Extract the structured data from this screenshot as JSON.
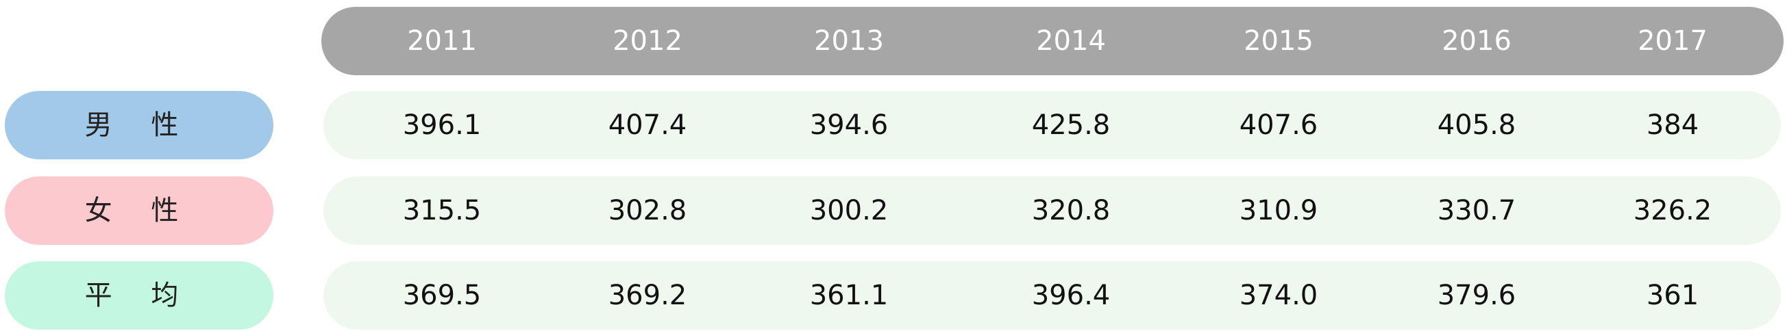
{
  "table": {
    "header": [
      "2011",
      "2012",
      "2013",
      "2014",
      "2015",
      "2016",
      "2017"
    ],
    "rows": [
      {
        "label": "男 性",
        "values": [
          "396.1",
          "407.4",
          "394.6",
          "425.8",
          "407.6",
          "405.8",
          "384"
        ]
      },
      {
        "label": "女 性",
        "values": [
          "315.5",
          "302.8",
          "300.2",
          "320.8",
          "310.9",
          "330.7",
          "326.2"
        ]
      },
      {
        "label": "平 均",
        "values": [
          "369.5",
          "369.2",
          "361.1",
          "396.4",
          "374.0",
          "379.6",
          "361"
        ]
      }
    ]
  }
}
